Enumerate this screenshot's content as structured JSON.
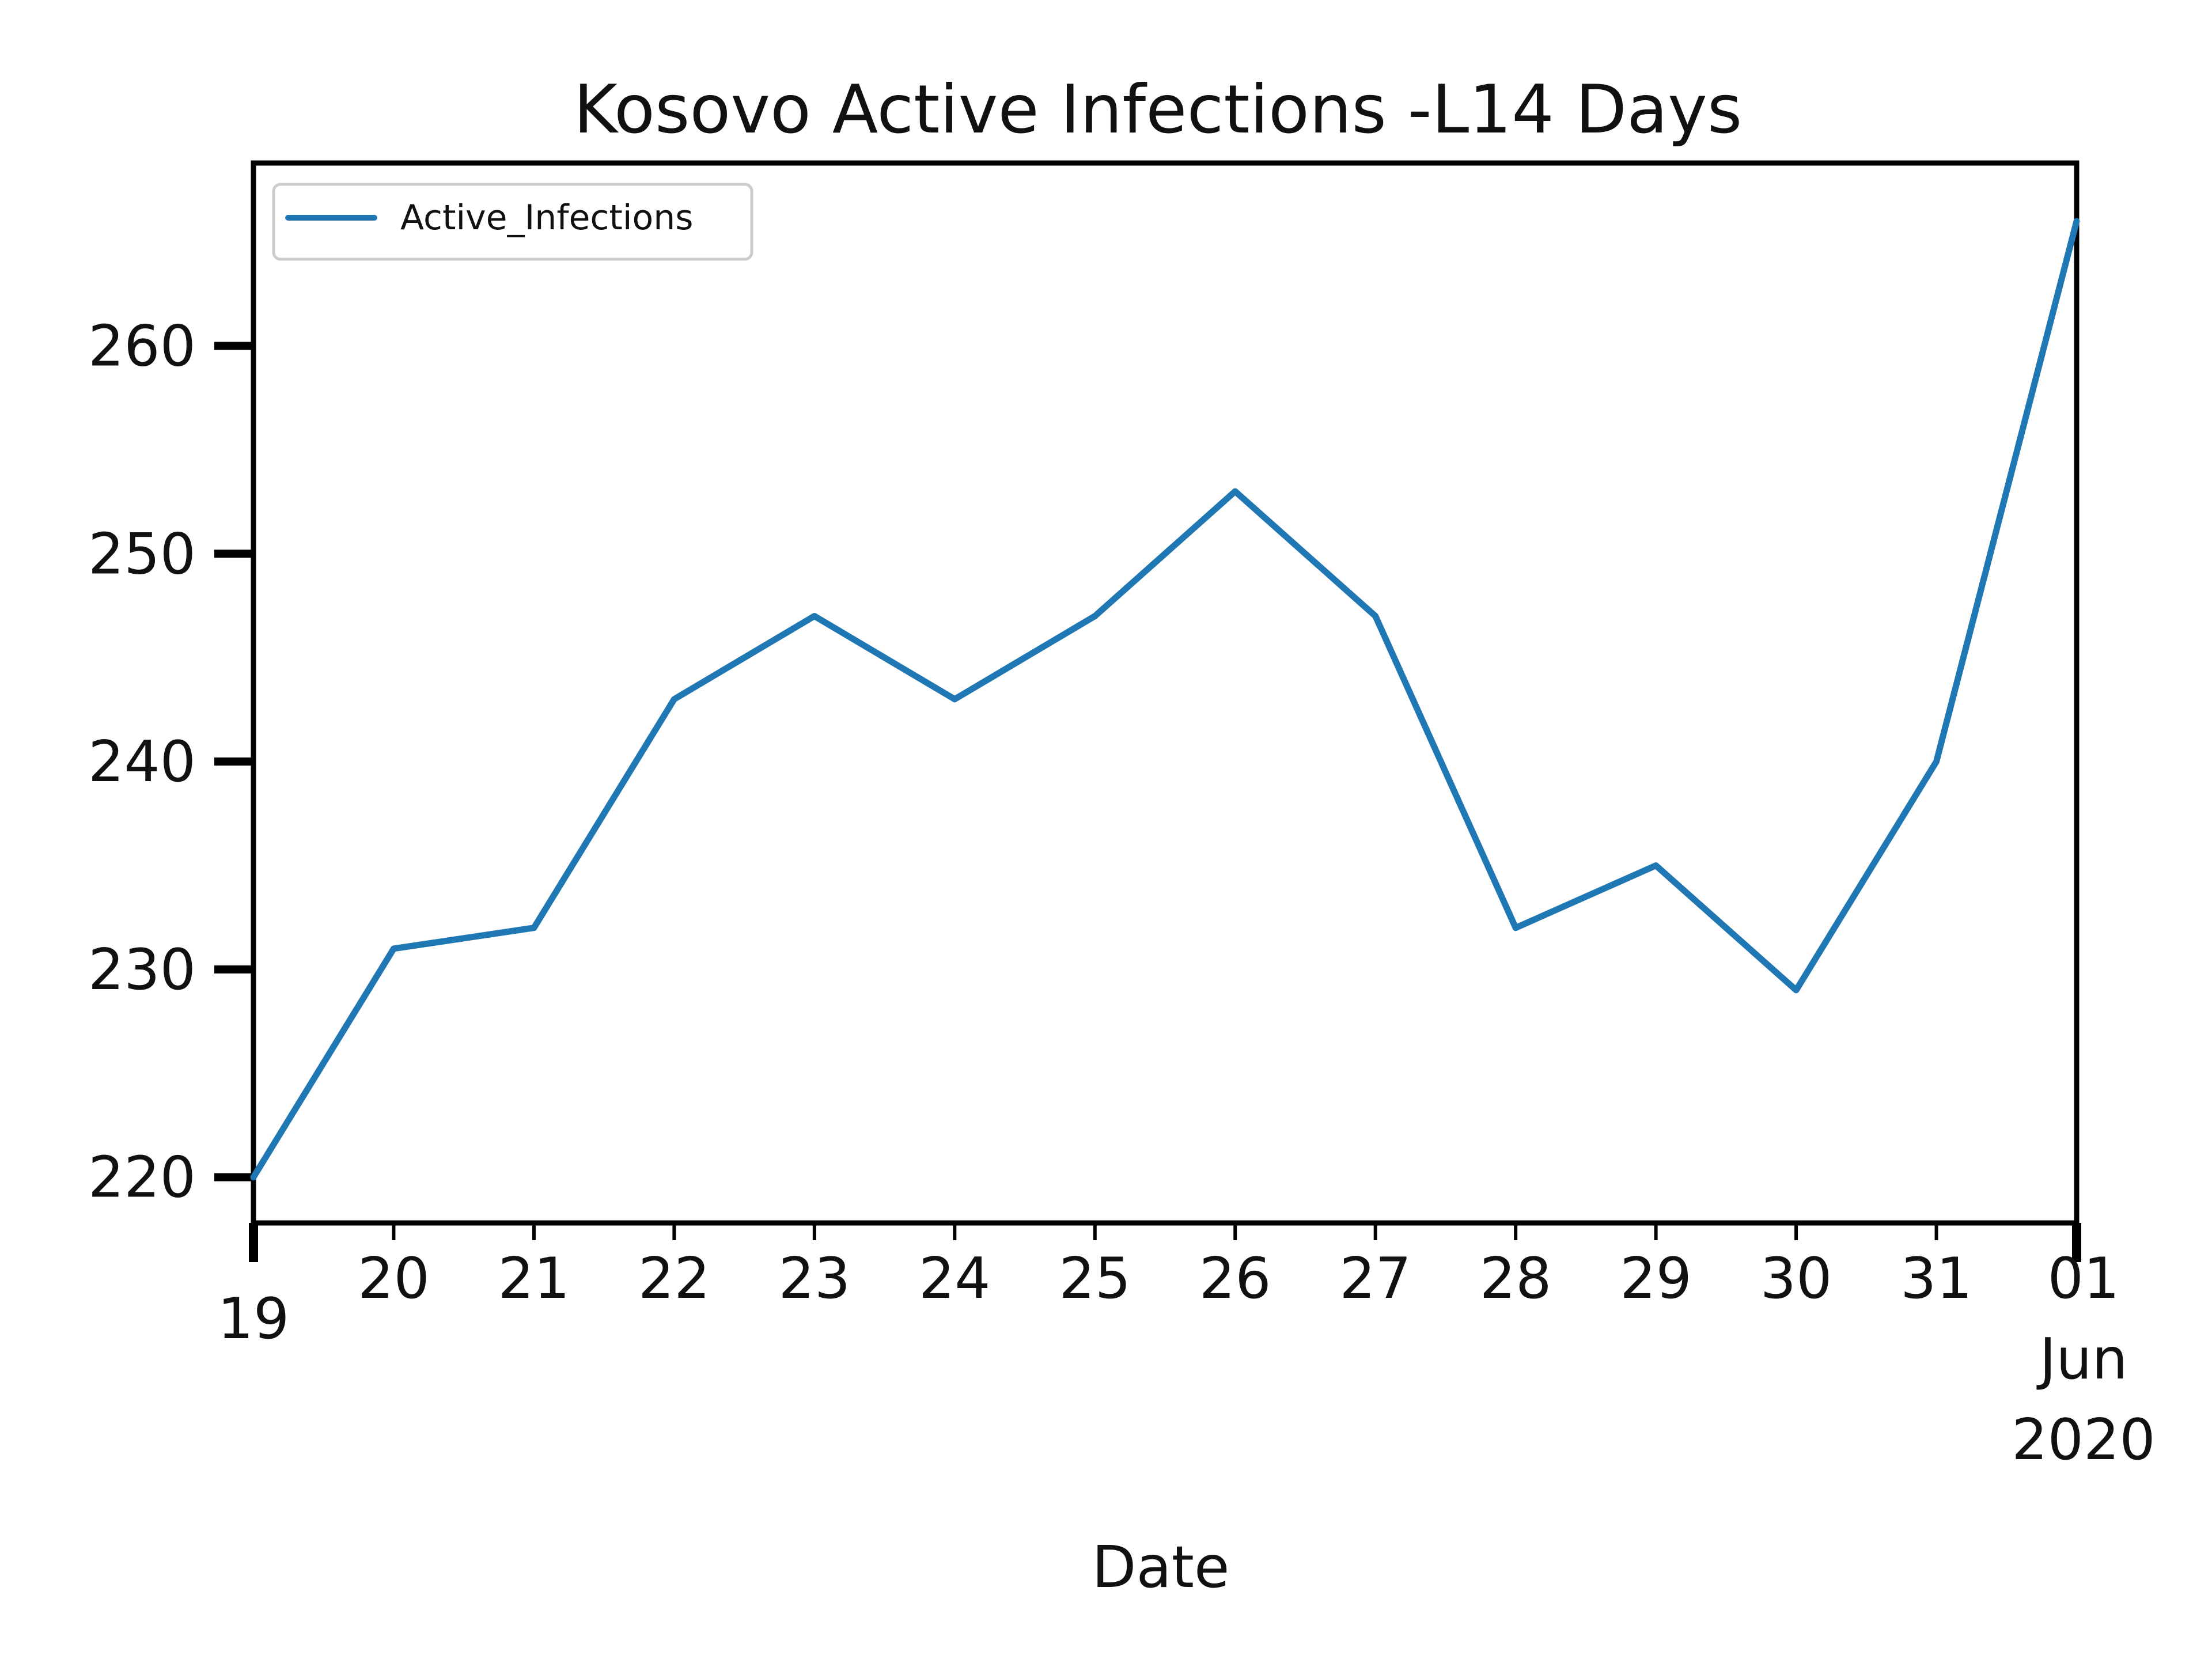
{
  "chart_data": {
    "type": "line",
    "title": "Kosovo Active Infections -L14 Days",
    "xlabel": "Date",
    "ylabel": "",
    "x": [
      "2020-05-19",
      "2020-05-20",
      "2020-05-21",
      "2020-05-22",
      "2020-05-23",
      "2020-05-24",
      "2020-05-25",
      "2020-05-26",
      "2020-05-27",
      "2020-05-28",
      "2020-05-29",
      "2020-05-30",
      "2020-05-31",
      "2020-06-01"
    ],
    "x_tick_labels": [
      {
        "date": "2020-05-19",
        "label": "19"
      },
      {
        "date": "2020-05-20",
        "label": "20"
      },
      {
        "date": "2020-05-21",
        "label": "21"
      },
      {
        "date": "2020-05-22",
        "label": "22"
      },
      {
        "date": "2020-05-23",
        "label": "23"
      },
      {
        "date": "2020-05-24",
        "label": "24"
      },
      {
        "date": "2020-05-25",
        "label": "25"
      },
      {
        "date": "2020-05-26",
        "label": "26"
      },
      {
        "date": "2020-05-27",
        "label": "27"
      },
      {
        "date": "2020-05-28",
        "label": "28"
      },
      {
        "date": "2020-05-29",
        "label": "29"
      },
      {
        "date": "2020-05-30",
        "label": "30"
      },
      {
        "date": "2020-05-31",
        "label": "31"
      },
      {
        "date": "2020-06-01",
        "label": "01\nJun\n2020"
      }
    ],
    "y_ticks": [
      220,
      230,
      240,
      250,
      260
    ],
    "ylim": [
      217.8,
      268.8
    ],
    "xlim": [
      "2020-05-19",
      "2020-06-01"
    ],
    "grid": false,
    "legend_position": "top-left",
    "series": [
      {
        "name": "Active_Infections",
        "color": "#1f77b4",
        "values": [
          220,
          231,
          232,
          243,
          247,
          243,
          247,
          253,
          247,
          232,
          235,
          229,
          240,
          266
        ]
      }
    ]
  }
}
